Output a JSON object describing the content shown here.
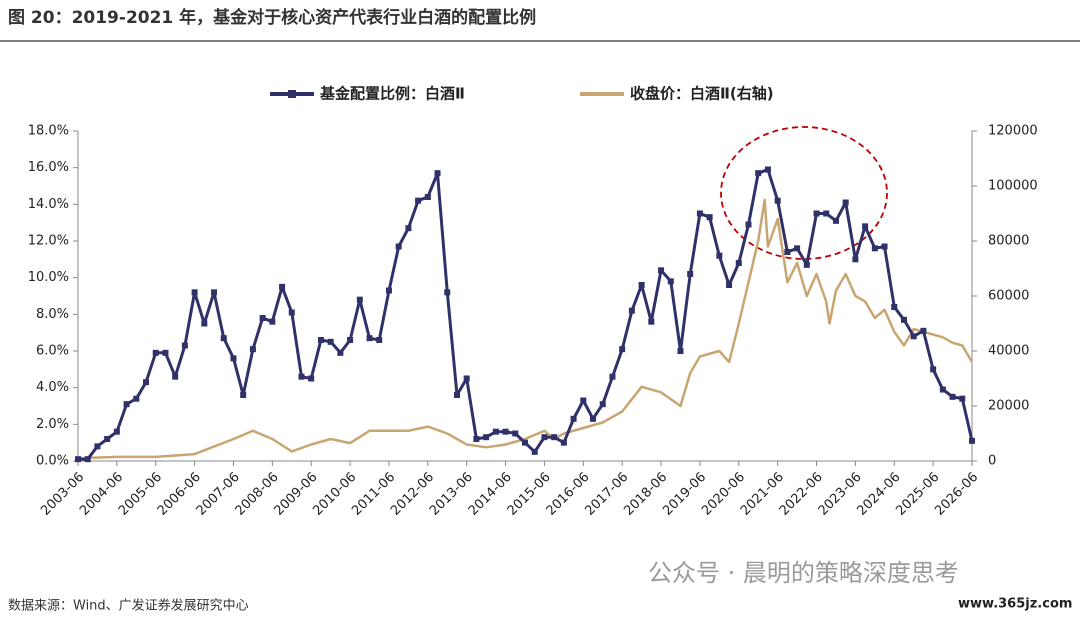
{
  "chart_data": {
    "type": "line",
    "title": "图 20：2019-2021 年，基金对于核心资产代表行业白酒的配置比例",
    "source": "数据来源：Wind、广发证券发展研究中心",
    "watermark": "公众号 · 晨明的策略深度思考",
    "site": "www.365jz.com",
    "xlim": [
      "2003-06",
      "2026-06"
    ],
    "xticks": [
      "2003-06",
      "2004-06",
      "2005-06",
      "2006-06",
      "2007-06",
      "2008-06",
      "2009-06",
      "2010-06",
      "2011-06",
      "2012-06",
      "2013-06",
      "2014-06",
      "2015-06",
      "2016-06",
      "2017-06",
      "2018-06",
      "2019-06",
      "2020-06",
      "2021-06",
      "2022-06",
      "2023-06",
      "2024-06",
      "2025-06",
      "2026-06"
    ],
    "ylim": [
      0,
      18
    ],
    "yticks": [
      {
        "value": 0,
        "label": "0.0%"
      },
      {
        "value": 2,
        "label": "2.0%"
      },
      {
        "value": 4,
        "label": "4.0%"
      },
      {
        "value": 6,
        "label": "6.0%"
      },
      {
        "value": 8,
        "label": "8.0%"
      },
      {
        "value": 10,
        "label": "10.0%"
      },
      {
        "value": 12,
        "label": "12.0%"
      },
      {
        "value": 14,
        "label": "14.0%"
      },
      {
        "value": 16,
        "label": "16.0%"
      },
      {
        "value": 18,
        "label": "18.0%"
      }
    ],
    "y2lim": [
      0,
      120000
    ],
    "y2ticks": [
      0,
      20000,
      40000,
      60000,
      80000,
      100000,
      120000
    ],
    "series": [
      {
        "name": "基金配置比例：白酒Ⅱ",
        "color": "#2f3168",
        "markers": true,
        "x": [
          "2003-06",
          "2003-09",
          "2003-12",
          "2004-03",
          "2004-06",
          "2004-09",
          "2004-12",
          "2005-03",
          "2005-06",
          "2005-09",
          "2005-12",
          "2006-03",
          "2006-06",
          "2006-09",
          "2006-12",
          "2007-03",
          "2007-06",
          "2007-09",
          "2007-12",
          "2008-03",
          "2008-06",
          "2008-09",
          "2008-12",
          "2009-03",
          "2009-06",
          "2009-09",
          "2009-12",
          "2010-03",
          "2010-06",
          "2010-09",
          "2010-12",
          "2011-03",
          "2011-06",
          "2011-09",
          "2011-12",
          "2012-03",
          "2012-06",
          "2012-09",
          "2012-12",
          "2013-03",
          "2013-06",
          "2013-09",
          "2013-12",
          "2014-03",
          "2014-06",
          "2014-09",
          "2014-12",
          "2015-03",
          "2015-06",
          "2015-09",
          "2015-12",
          "2016-03",
          "2016-06",
          "2016-09",
          "2016-12",
          "2017-03",
          "2017-06",
          "2017-09",
          "2017-12",
          "2018-03",
          "2018-06",
          "2018-09",
          "2018-12",
          "2019-03",
          "2019-06",
          "2019-09",
          "2019-12",
          "2020-03",
          "2020-06",
          "2020-09",
          "2020-12",
          "2021-03",
          "2021-06",
          "2021-09",
          "2021-12",
          "2022-03",
          "2022-06",
          "2022-09",
          "2022-12",
          "2023-03",
          "2023-06",
          "2023-09",
          "2023-12",
          "2024-03",
          "2024-06",
          "2024-09",
          "2024-12",
          "2025-03",
          "2025-06",
          "2025-09",
          "2025-12",
          "2026-03",
          "2026-06"
        ],
        "values": [
          0.1,
          0.1,
          0.8,
          1.2,
          1.6,
          3.1,
          3.4,
          4.3,
          5.9,
          5.9,
          4.6,
          6.3,
          9.2,
          7.5,
          9.2,
          6.7,
          5.6,
          3.6,
          6.1,
          7.8,
          7.6,
          9.5,
          8.1,
          4.6,
          4.5,
          6.6,
          6.5,
          5.9,
          6.6,
          8.8,
          6.7,
          6.6,
          9.3,
          11.7,
          12.7,
          14.2,
          14.4,
          15.7,
          9.2,
          3.6,
          4.5,
          1.2,
          1.3,
          1.6,
          1.6,
          1.5,
          1.0,
          0.5,
          1.3,
          1.3,
          1.0,
          2.3,
          3.3,
          2.3,
          3.1,
          4.6,
          6.1,
          8.2,
          9.6,
          7.6,
          10.4,
          9.8,
          6.0,
          10.2,
          13.5,
          13.3,
          11.2,
          9.6,
          10.8,
          12.9,
          15.7,
          15.9,
          14.2,
          11.4,
          11.6,
          10.7,
          13.5,
          13.5,
          13.1,
          14.1,
          11.0,
          12.8,
          11.6,
          11.7,
          8.4,
          7.7,
          6.8,
          7.1,
          5.0,
          3.9,
          3.5,
          3.4,
          1.1
        ]
      },
      {
        "name": "收盘价：白酒Ⅱ(右轴)",
        "color": "#c9a572",
        "axis": "y2",
        "markers": false,
        "x": [
          "2003-06",
          "2004-06",
          "2005-06",
          "2006-06",
          "2007-06",
          "2007-12",
          "2008-06",
          "2008-12",
          "2009-06",
          "2009-12",
          "2010-06",
          "2010-12",
          "2011-06",
          "2011-12",
          "2012-06",
          "2012-12",
          "2013-06",
          "2013-12",
          "2014-06",
          "2014-12",
          "2015-06",
          "2015-09",
          "2015-12",
          "2016-06",
          "2016-12",
          "2017-06",
          "2017-12",
          "2018-06",
          "2018-12",
          "2019-03",
          "2019-06",
          "2019-12",
          "2020-03",
          "2020-06",
          "2020-09",
          "2020-12",
          "2021-02",
          "2021-03",
          "2021-06",
          "2021-09",
          "2021-12",
          "2022-03",
          "2022-06",
          "2022-09",
          "2022-10",
          "2022-12",
          "2023-03",
          "2023-06",
          "2023-09",
          "2023-12",
          "2024-03",
          "2024-06",
          "2024-09",
          "2024-12",
          "2025-03",
          "2025-06",
          "2025-09",
          "2025-12",
          "2026-03",
          "2026-06"
        ],
        "values": [
          1000,
          1500,
          1500,
          2500,
          8000,
          11000,
          8000,
          3500,
          6000,
          8000,
          6500,
          11000,
          11000,
          11000,
          12500,
          10000,
          6000,
          5000,
          6000,
          8000,
          11000,
          8000,
          10000,
          12000,
          14000,
          18000,
          27000,
          25000,
          20000,
          32000,
          38000,
          40000,
          36000,
          50000,
          65000,
          80000,
          95000,
          78000,
          88000,
          65000,
          72000,
          60000,
          68000,
          58000,
          50000,
          62000,
          68000,
          60000,
          58000,
          52000,
          55000,
          47000,
          42000,
          48000,
          47000,
          46000,
          45000,
          43000,
          42000,
          36000
        ]
      }
    ]
  }
}
